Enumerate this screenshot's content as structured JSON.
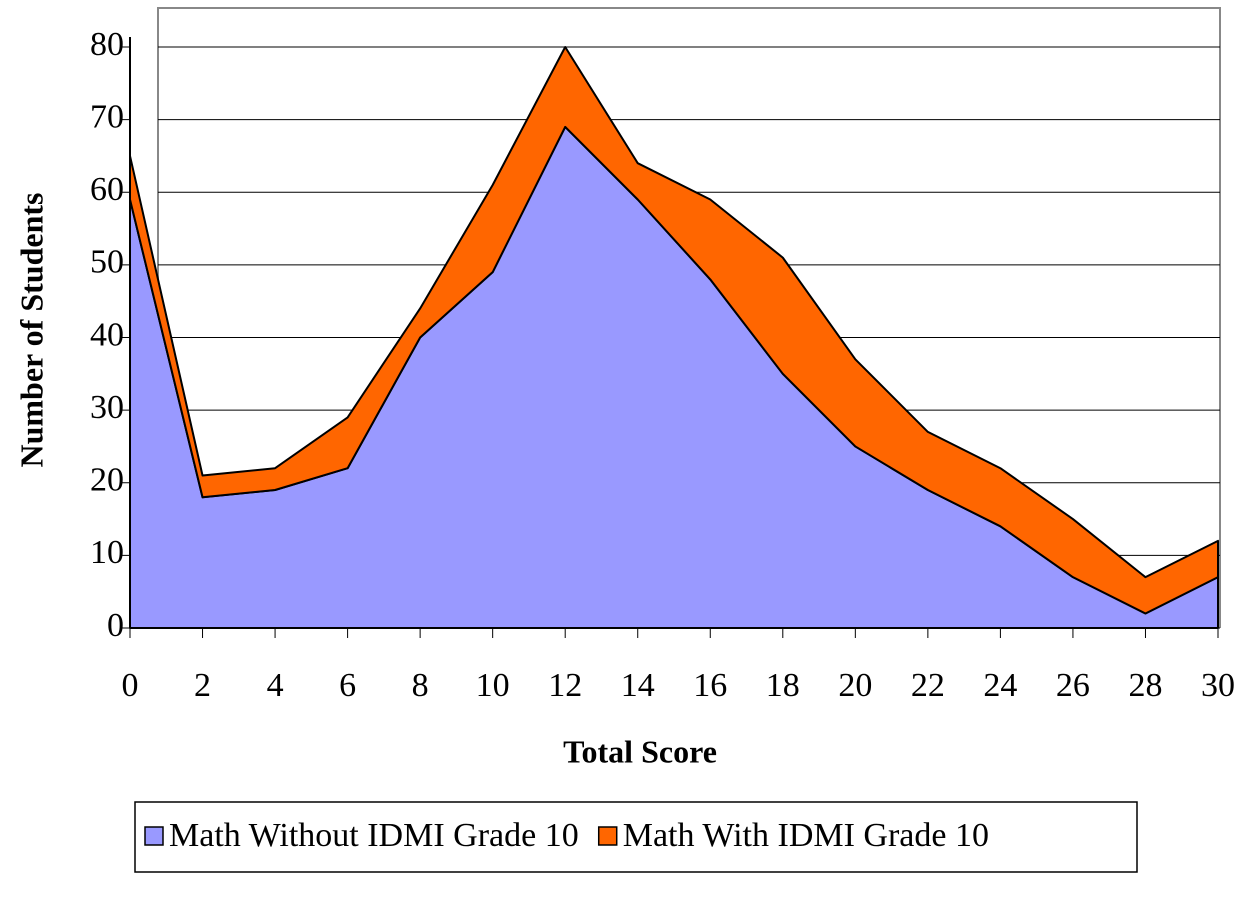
{
  "chart_data": {
    "type": "area",
    "stacked": true,
    "x_label": "Total Score",
    "y_label": "Number of Students",
    "x": [
      0,
      2,
      4,
      6,
      8,
      10,
      12,
      14,
      16,
      18,
      20,
      22,
      24,
      26,
      28,
      30
    ],
    "series": [
      {
        "name": "Math Without IDMI Grade 10",
        "color": "#9999ff",
        "values": [
          59,
          18,
          19,
          22,
          40,
          49,
          69,
          59,
          48,
          35,
          25,
          19,
          14,
          7,
          2,
          7
        ]
      },
      {
        "name": "Math With IDMI Grade 10",
        "color": "#ff6600",
        "values": [
          6,
          3,
          3,
          7,
          4,
          12,
          11,
          5,
          11,
          16,
          12,
          8,
          8,
          8,
          5,
          5
        ]
      }
    ],
    "xlim": [
      0,
      30
    ],
    "xticks": [
      0,
      2,
      4,
      6,
      8,
      10,
      12,
      14,
      16,
      18,
      20,
      22,
      24,
      26,
      28,
      30
    ],
    "ylim": [
      0,
      80
    ],
    "yticks": [
      0,
      10,
      20,
      30,
      40,
      50,
      60,
      70,
      80
    ],
    "grid": true,
    "legend": "bottom"
  }
}
